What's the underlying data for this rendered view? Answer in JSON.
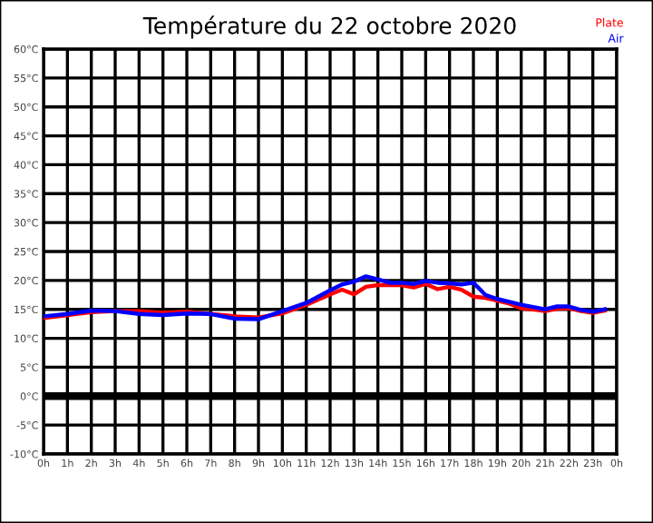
{
  "chart_data": {
    "type": "line",
    "title": "Température du 22 octobre 2020",
    "legend": "top right",
    "grid": true,
    "xlim": [
      "2020-10-22T00:00",
      "2020-10-23T00:00"
    ],
    "xticks": [
      {
        "value": "2020-10-22T00:00",
        "label": "0h"
      },
      {
        "value": "2020-10-22T01:00",
        "label": "1h"
      },
      {
        "value": "2020-10-22T02:00",
        "label": "2h"
      },
      {
        "value": "2020-10-22T03:00",
        "label": "3h"
      },
      {
        "value": "2020-10-22T04:00",
        "label": "4h"
      },
      {
        "value": "2020-10-22T05:00",
        "label": "5h"
      },
      {
        "value": "2020-10-22T06:00",
        "label": "6h"
      },
      {
        "value": "2020-10-22T07:00",
        "label": "7h"
      },
      {
        "value": "2020-10-22T08:00",
        "label": "8h"
      },
      {
        "value": "2020-10-22T09:00",
        "label": "9h"
      },
      {
        "value": "2020-10-22T10:00",
        "label": "10h"
      },
      {
        "value": "2020-10-22T11:00",
        "label": "11h"
      },
      {
        "value": "2020-10-22T12:00",
        "label": "12h"
      },
      {
        "value": "2020-10-22T13:00",
        "label": "13h"
      },
      {
        "value": "2020-10-22T14:00",
        "label": "14h"
      },
      {
        "value": "2020-10-22T15:00",
        "label": "15h"
      },
      {
        "value": "2020-10-22T16:00",
        "label": "16h"
      },
      {
        "value": "2020-10-22T17:00",
        "label": "17h"
      },
      {
        "value": "2020-10-22T18:00",
        "label": "18h"
      },
      {
        "value": "2020-10-22T19:00",
        "label": "19h"
      },
      {
        "value": "2020-10-22T20:00",
        "label": "20h"
      },
      {
        "value": "2020-10-22T21:00",
        "label": "21h"
      },
      {
        "value": "2020-10-22T22:00",
        "label": "22h"
      },
      {
        "value": "2020-10-22T23:00",
        "label": "23h"
      },
      {
        "value": "2020-10-23T00:00",
        "label": "0h"
      }
    ],
    "ylim": [
      -10,
      60
    ],
    "yticks": [
      {
        "value": -10,
        "label": "-10°C"
      },
      {
        "value": -5,
        "label": "-5°C"
      },
      {
        "value": 0,
        "label": "0°C"
      },
      {
        "value": 5,
        "label": "5°C"
      },
      {
        "value": 10,
        "label": "10°C"
      },
      {
        "value": 15,
        "label": "15°C"
      },
      {
        "value": 20,
        "label": "20°C"
      },
      {
        "value": 25,
        "label": "25°C"
      },
      {
        "value": 30,
        "label": "30°C"
      },
      {
        "value": 35,
        "label": "35°C"
      },
      {
        "value": 40,
        "label": "40°C"
      },
      {
        "value": 45,
        "label": "45°C"
      },
      {
        "value": 50,
        "label": "50°C"
      },
      {
        "value": 55,
        "label": "55°C"
      },
      {
        "value": 60,
        "label": "60°C"
      }
    ],
    "ref_lines": [
      {
        "axis": "y",
        "value": 0,
        "color": "#000000"
      }
    ],
    "x": [
      "2020-10-22T00:00",
      "2020-10-22T01:00",
      "2020-10-22T02:00",
      "2020-10-22T03:00",
      "2020-10-22T04:00",
      "2020-10-22T05:00",
      "2020-10-22T06:00",
      "2020-10-22T07:00",
      "2020-10-22T08:00",
      "2020-10-22T09:00",
      "2020-10-22T10:00",
      "2020-10-22T11:00",
      "2020-10-22T12:00",
      "2020-10-22T12:30",
      "2020-10-22T13:00",
      "2020-10-22T13:30",
      "2020-10-22T14:00",
      "2020-10-22T14:30",
      "2020-10-22T15:00",
      "2020-10-22T15:30",
      "2020-10-22T16:00",
      "2020-10-22T16:30",
      "2020-10-22T17:00",
      "2020-10-22T17:30",
      "2020-10-22T18:00",
      "2020-10-22T18:30",
      "2020-10-22T19:00",
      "2020-10-22T19:30",
      "2020-10-22T20:00",
      "2020-10-22T20:30",
      "2020-10-22T21:00",
      "2020-10-22T21:30",
      "2020-10-22T22:00",
      "2020-10-22T22:30",
      "2020-10-22T23:00",
      "2020-10-22T23:30"
    ],
    "series": [
      {
        "name": "Plate",
        "color": "#ff0000",
        "values": [
          13.5,
          14.0,
          14.5,
          14.7,
          14.7,
          14.4,
          14.6,
          14.2,
          13.8,
          13.6,
          14.3,
          15.8,
          17.6,
          18.4,
          17.6,
          18.9,
          19.2,
          19.2,
          19.2,
          18.8,
          19.4,
          18.5,
          18.9,
          18.4,
          17.2,
          17.0,
          16.5,
          16.0,
          15.2,
          15.0,
          14.7,
          15.1,
          15.2,
          14.7,
          14.4,
          14.8
        ]
      },
      {
        "name": "Air",
        "color": "#0000ff",
        "values": [
          13.8,
          14.2,
          14.8,
          14.7,
          14.2,
          14.0,
          14.3,
          14.2,
          13.4,
          13.3,
          14.7,
          16.1,
          18.3,
          19.3,
          19.8,
          20.7,
          20.2,
          19.6,
          19.6,
          19.4,
          19.9,
          19.6,
          19.5,
          19.3,
          19.6,
          17.5,
          16.8,
          16.3,
          15.8,
          15.4,
          15.0,
          15.5,
          15.5,
          14.9,
          14.6,
          15.0
        ]
      }
    ]
  }
}
